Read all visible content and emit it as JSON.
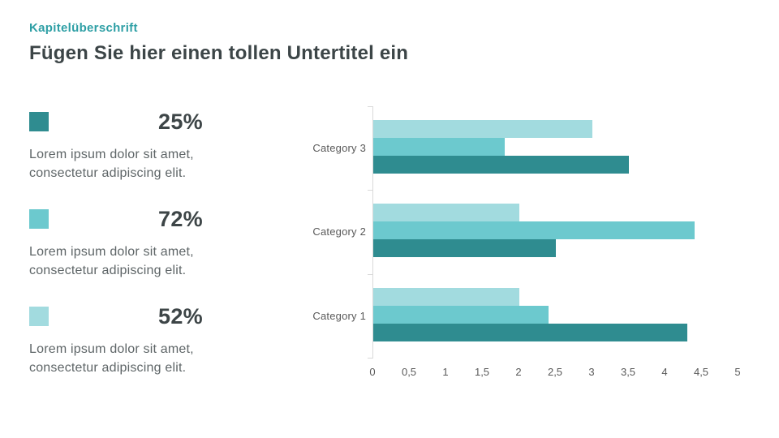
{
  "slide": {
    "eyebrow": "Kapitelüberschrift",
    "title": "Fügen Sie hier einen tollen Untertitel ein"
  },
  "stats": [
    {
      "value": "25%",
      "description": "Lorem ipsum dolor sit amet, consectetur adipiscing elit.",
      "color": "#2F8C90"
    },
    {
      "value": "72%",
      "description": "Lorem ipsum dolor sit amet, consectetur adipiscing elit.",
      "color": "#6CC9CE"
    },
    {
      "value": "52%",
      "description": "Lorem ipsum dolor sit amet, consectetur adipiscing elit.",
      "color": "#A2DBDF"
    }
  ],
  "chart_data": {
    "type": "bar",
    "orientation": "horizontal",
    "title": "",
    "xlabel": "",
    "ylabel": "",
    "categories": [
      "Category 3",
      "Category 2",
      "Category 1"
    ],
    "series": [
      {
        "name": "series-light",
        "color": "#A2DBDF",
        "values": [
          3.0,
          2.0,
          2.0
        ]
      },
      {
        "name": "series-medium",
        "color": "#6CC9CE",
        "values": [
          1.8,
          4.4,
          2.4
        ]
      },
      {
        "name": "series-dark",
        "color": "#2F8C90",
        "values": [
          3.5,
          2.5,
          4.3
        ]
      }
    ],
    "xlim": [
      0,
      5
    ],
    "tick_step": 0.5,
    "tick_labels": [
      "0",
      "0,5",
      "1",
      "1,5",
      "2",
      "2,5",
      "3",
      "3,5",
      "4",
      "4,5",
      "5"
    ],
    "legend": "none",
    "gridlines": "none",
    "axis_line_color": "#D9D9D9"
  }
}
